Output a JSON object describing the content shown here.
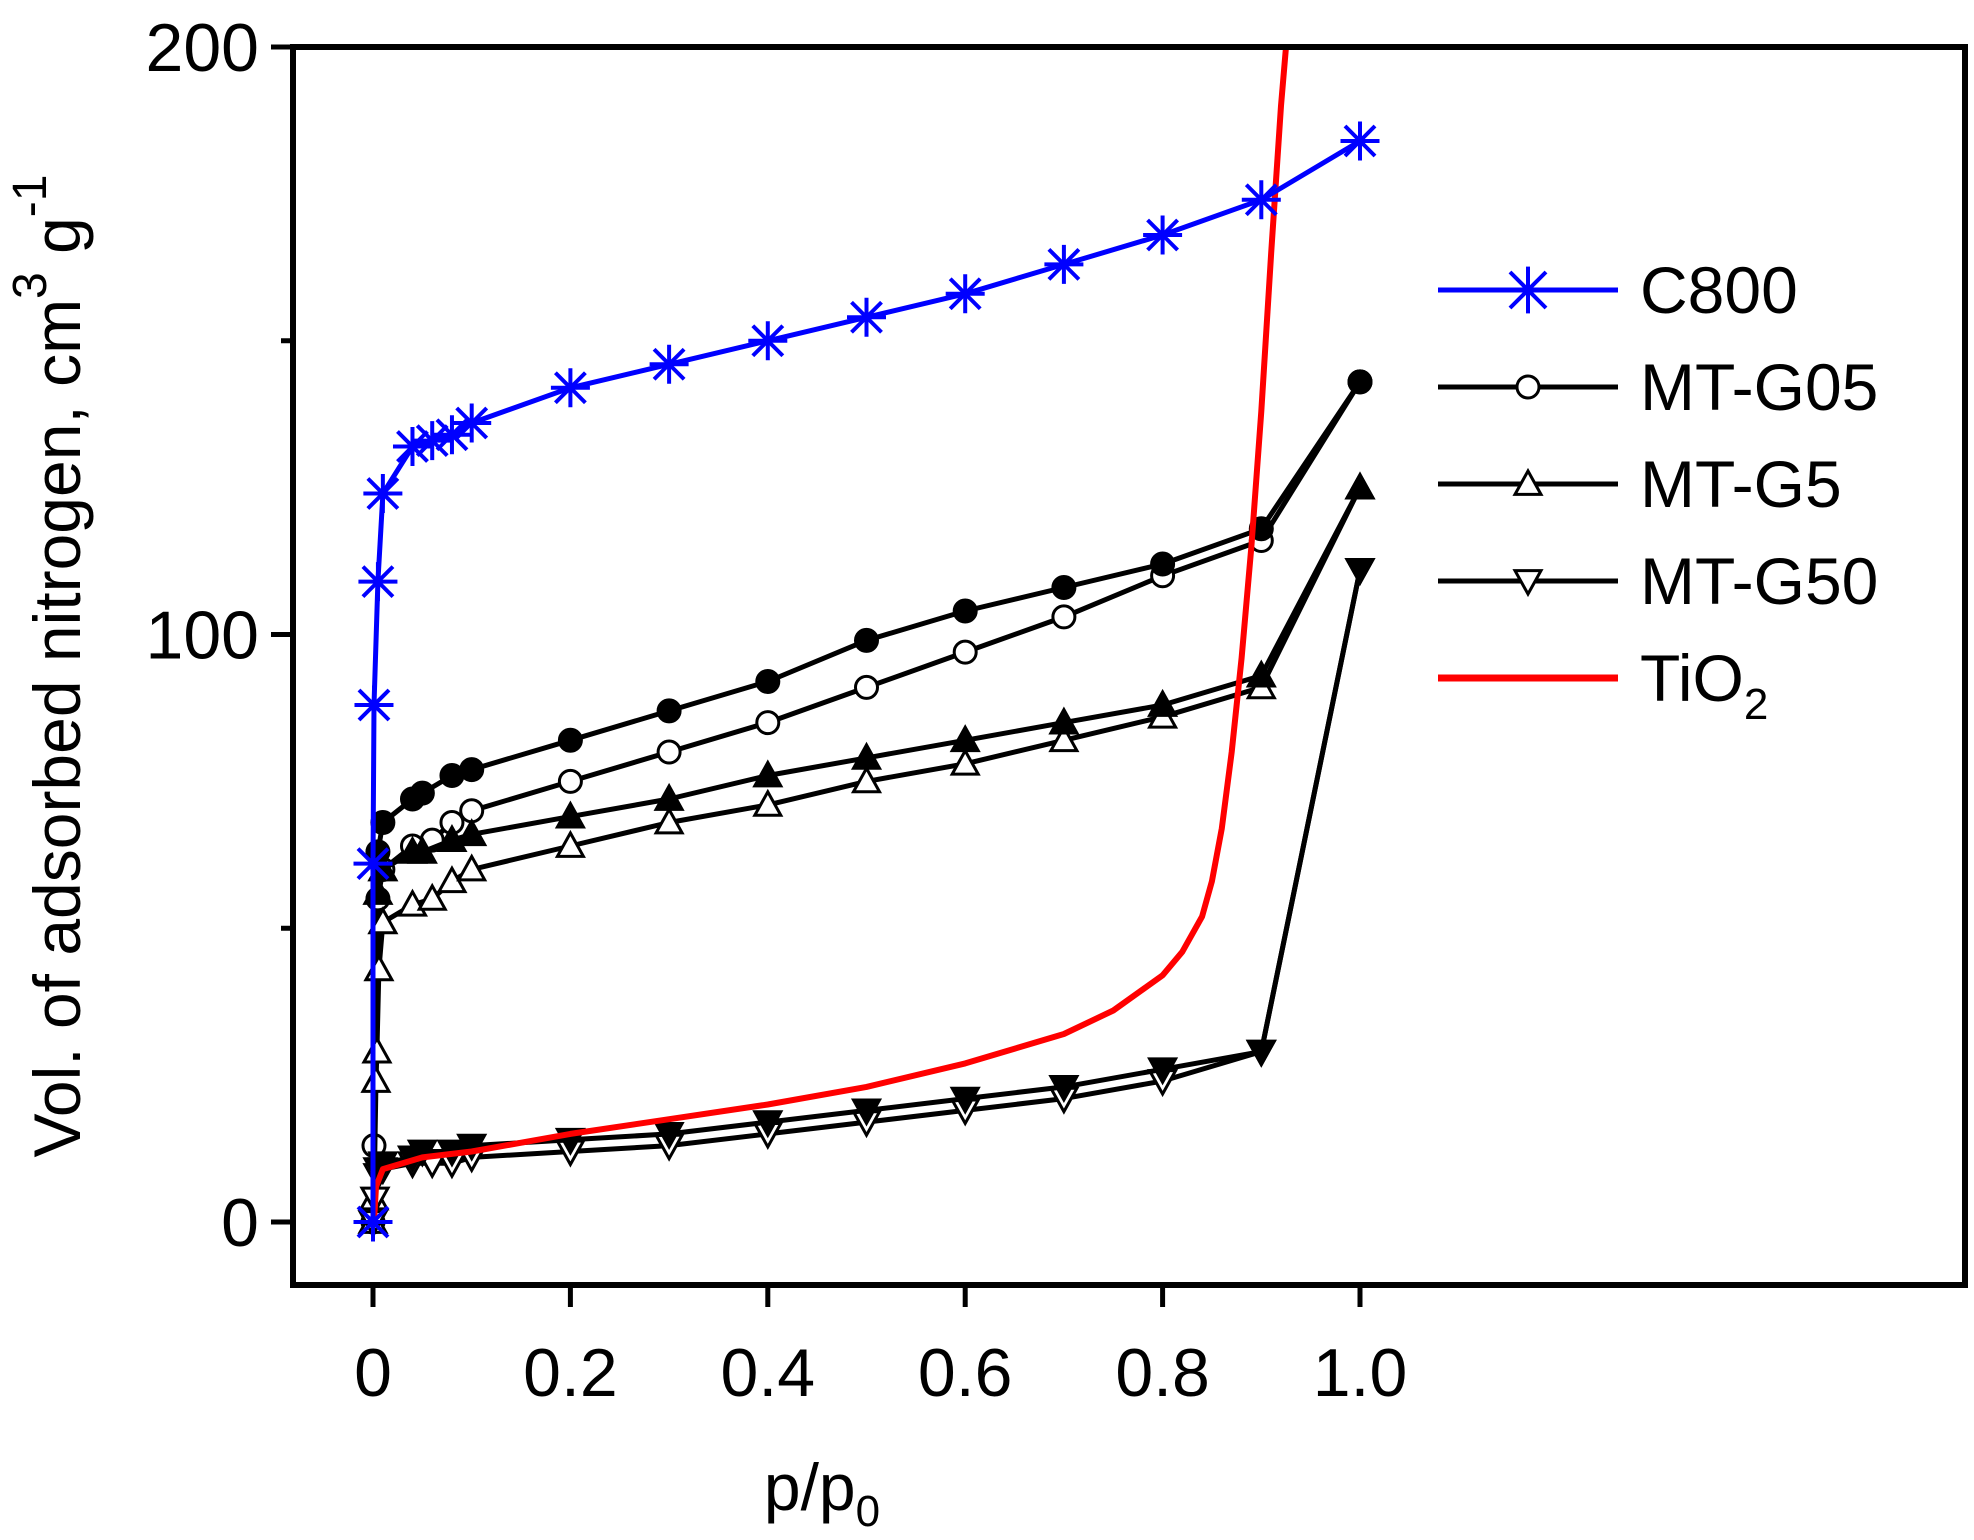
{
  "chart_data": {
    "type": "line",
    "title": "",
    "xlabel": "p/p",
    "xlabel_sub": "0",
    "ylabel": "Vol. of adsorbed nitrogen, cm",
    "ylabel_sup": "3",
    "ylabel_g": " g",
    "ylabel_sup2": "-1",
    "xlim": [
      -0.07,
      1.62
    ],
    "ylim": [
      -11,
      200
    ],
    "x_ticks": [
      {
        "v": 0,
        "label": "0"
      },
      {
        "v": 0.2,
        "label": "0.2"
      },
      {
        "v": 0.4,
        "label": "0.4"
      },
      {
        "v": 0.6,
        "label": "0.6"
      },
      {
        "v": 0.8,
        "label": "0.8"
      },
      {
        "v": 1.0,
        "label": "1.0"
      }
    ],
    "y_ticks": [
      {
        "v": 0,
        "label": "0"
      },
      {
        "v": 100,
        "label": "100"
      },
      {
        "v": 200,
        "label": "200"
      }
    ],
    "y_minor_ticks": [
      50,
      150
    ],
    "legend": {
      "position": "right",
      "entries": [
        {
          "label": "C800",
          "color": "#0000ff",
          "marker": "star"
        },
        {
          "label": "MT-G05",
          "color": "#000000",
          "marker": "circle-open"
        },
        {
          "label": "MT-G5",
          "color": "#000000",
          "marker": "triangle-up-open"
        },
        {
          "label": "MT-G50",
          "color": "#000000",
          "marker": "triangle-down-open"
        },
        {
          "label": "TiO",
          "sub": "2",
          "color": "#ff0000",
          "marker": "none"
        }
      ]
    },
    "series": [
      {
        "name": "C800",
        "color": "#0000ff",
        "marker": "star",
        "points": [
          [
            0,
            0
          ],
          [
            0,
            61
          ],
          [
            0.001,
            88
          ],
          [
            0.005,
            109
          ],
          [
            0.01,
            124
          ],
          [
            0.04,
            132
          ],
          [
            0.06,
            133
          ],
          [
            0.08,
            134
          ],
          [
            0.1,
            136
          ],
          [
            0.2,
            142
          ],
          [
            0.3,
            146
          ],
          [
            0.4,
            150
          ],
          [
            0.5,
            154
          ],
          [
            0.6,
            158
          ],
          [
            0.7,
            163
          ],
          [
            0.8,
            168
          ],
          [
            0.9,
            174
          ],
          [
            1.0,
            184
          ]
        ]
      },
      {
        "name": "MT-G05 adsorption",
        "color": "#000000",
        "marker": "circle-open",
        "points": [
          [
            0,
            0
          ],
          [
            0.001,
            13
          ],
          [
            0.005,
            55
          ],
          [
            0.01,
            60
          ],
          [
            0.04,
            64
          ],
          [
            0.06,
            65
          ],
          [
            0.08,
            68
          ],
          [
            0.1,
            70
          ],
          [
            0.2,
            75
          ],
          [
            0.3,
            80
          ],
          [
            0.4,
            85
          ],
          [
            0.5,
            91
          ],
          [
            0.6,
            97
          ],
          [
            0.7,
            103
          ],
          [
            0.8,
            110
          ],
          [
            0.9,
            116
          ],
          [
            1.0,
            143
          ]
        ]
      },
      {
        "name": "MT-G05 desorption",
        "color": "#000000",
        "marker": "circle-filled",
        "points": [
          [
            1.0,
            143
          ],
          [
            0.9,
            118
          ],
          [
            0.8,
            112
          ],
          [
            0.7,
            108
          ],
          [
            0.6,
            104
          ],
          [
            0.5,
            99
          ],
          [
            0.4,
            92
          ],
          [
            0.3,
            87
          ],
          [
            0.2,
            82
          ],
          [
            0.1,
            77
          ],
          [
            0.08,
            76
          ],
          [
            0.05,
            73
          ],
          [
            0.04,
            72
          ],
          [
            0.01,
            68
          ],
          [
            0.005,
            63
          ]
        ]
      },
      {
        "name": "MT-G5 adsorption",
        "color": "#000000",
        "marker": "triangle-up-open",
        "points": [
          [
            0,
            0
          ],
          [
            0.001,
            4
          ],
          [
            0.003,
            24
          ],
          [
            0.004,
            29
          ],
          [
            0.006,
            43
          ],
          [
            0.01,
            51
          ],
          [
            0.04,
            54
          ],
          [
            0.06,
            55
          ],
          [
            0.08,
            58
          ],
          [
            0.1,
            60
          ],
          [
            0.2,
            64
          ],
          [
            0.3,
            68
          ],
          [
            0.4,
            71
          ],
          [
            0.5,
            75
          ],
          [
            0.6,
            78
          ],
          [
            0.7,
            82
          ],
          [
            0.8,
            86
          ],
          [
            0.9,
            91
          ],
          [
            1.0,
            125
          ]
        ]
      },
      {
        "name": "MT-G5 desorption",
        "color": "#000000",
        "marker": "triangle-up-filled",
        "points": [
          [
            1.0,
            125
          ],
          [
            0.9,
            93
          ],
          [
            0.8,
            88
          ],
          [
            0.7,
            85
          ],
          [
            0.6,
            82
          ],
          [
            0.5,
            79
          ],
          [
            0.4,
            76
          ],
          [
            0.3,
            72
          ],
          [
            0.2,
            69
          ],
          [
            0.1,
            66
          ],
          [
            0.08,
            65
          ],
          [
            0.05,
            63
          ],
          [
            0.04,
            63
          ],
          [
            0.01,
            60
          ],
          [
            0.005,
            56
          ]
        ]
      },
      {
        "name": "MT-G50 adsorption",
        "color": "#000000",
        "marker": "triangle-down-open",
        "points": [
          [
            0,
            0
          ],
          [
            0.002,
            4
          ],
          [
            0.005,
            8
          ],
          [
            0.01,
            9
          ],
          [
            0.04,
            10
          ],
          [
            0.06,
            10
          ],
          [
            0.08,
            10
          ],
          [
            0.1,
            11
          ],
          [
            0.2,
            12
          ],
          [
            0.3,
            13
          ],
          [
            0.4,
            15
          ],
          [
            0.5,
            17
          ],
          [
            0.6,
            19
          ],
          [
            0.7,
            21
          ],
          [
            0.8,
            24
          ],
          [
            0.9,
            29
          ],
          [
            1.0,
            111
          ]
        ]
      },
      {
        "name": "MT-G50 desorption",
        "color": "#000000",
        "marker": "triangle-down-filled",
        "points": [
          [
            1.0,
            111
          ],
          [
            0.9,
            29
          ],
          [
            0.8,
            26
          ],
          [
            0.7,
            23
          ],
          [
            0.6,
            21
          ],
          [
            0.5,
            19
          ],
          [
            0.4,
            17
          ],
          [
            0.3,
            15
          ],
          [
            0.2,
            14
          ],
          [
            0.1,
            13
          ],
          [
            0.08,
            12
          ],
          [
            0.05,
            12
          ],
          [
            0.04,
            11
          ],
          [
            0.01,
            10
          ],
          [
            0.005,
            9
          ]
        ]
      },
      {
        "name": "TiO2",
        "color": "#ff0000",
        "marker": "none",
        "points": [
          [
            0.001,
            0
          ],
          [
            0.003,
            6
          ],
          [
            0.01,
            9
          ],
          [
            0.05,
            11
          ],
          [
            0.1,
            12
          ],
          [
            0.2,
            15
          ],
          [
            0.3,
            17.5
          ],
          [
            0.4,
            20
          ],
          [
            0.5,
            23
          ],
          [
            0.6,
            27
          ],
          [
            0.7,
            32
          ],
          [
            0.75,
            36
          ],
          [
            0.8,
            42
          ],
          [
            0.82,
            46
          ],
          [
            0.84,
            52
          ],
          [
            0.85,
            58
          ],
          [
            0.86,
            67
          ],
          [
            0.87,
            80
          ],
          [
            0.88,
            96
          ],
          [
            0.89,
            115
          ],
          [
            0.9,
            138
          ],
          [
            0.91,
            165
          ],
          [
            0.92,
            190
          ],
          [
            0.925,
            200
          ]
        ]
      }
    ]
  }
}
